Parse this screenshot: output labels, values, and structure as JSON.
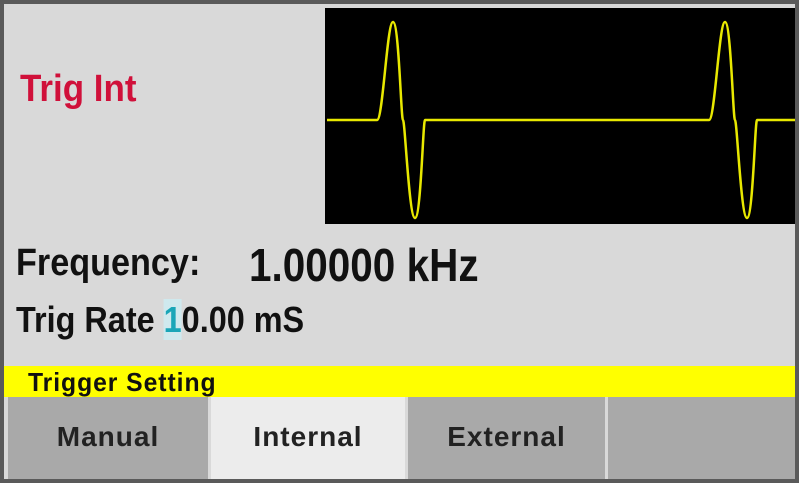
{
  "status": {
    "mode": "Trig Int"
  },
  "frequency": {
    "label": "Frequency:",
    "value": "1.00000 kHz"
  },
  "trig_rate": {
    "label": "Trig Rate",
    "cursor_digit": "1",
    "rest": "0.00 mS"
  },
  "menu": {
    "title": "Trigger Setting",
    "softkeys": [
      {
        "label": "Manual",
        "selected": false
      },
      {
        "label": "Internal",
        "selected": true
      },
      {
        "label": "External",
        "selected": false
      },
      {
        "label": null,
        "selected": false
      }
    ]
  }
}
